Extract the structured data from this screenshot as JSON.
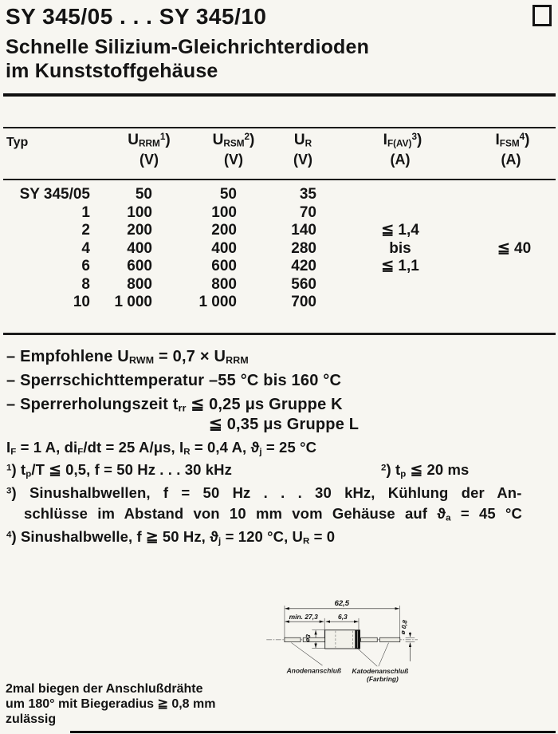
{
  "page": {
    "title": "SY 345/05 . . . SY 345/10",
    "subtitle_line1": "Schnelle Silizium-Gleichrichterdioden",
    "subtitle_line2": "im Kunststoffgehäuse"
  },
  "table": {
    "header": {
      "typ": "Typ",
      "col1": "U~RRM~^1^)",
      "col1_unit": "(V)",
      "col2": "U~RSM~^2^)",
      "col2_unit": "(V)",
      "col3": "U~R~",
      "col3_unit": "(V)",
      "col4": "I~F(AV)~^3^)",
      "col4_unit": "(A)",
      "col5": "I~FSM~^4^)",
      "col5_unit": "(A)"
    },
    "rows": [
      [
        "SY 345/05",
        "50",
        "50",
        "35"
      ],
      [
        "1",
        "100",
        "100",
        "70"
      ],
      [
        "2",
        "200",
        "200",
        "140"
      ],
      [
        "4",
        "400",
        "400",
        "280"
      ],
      [
        "6",
        "600",
        "600",
        "420"
      ],
      [
        "8",
        "800",
        "800",
        "560"
      ],
      [
        "10",
        "1 000",
        "1 000",
        "700"
      ]
    ],
    "if_av": [
      "≦ 1,4",
      "bis",
      "≦ 1,1"
    ],
    "ifsm": "≦ 40"
  },
  "notes": {
    "n1": "– Empfohlene U~RWM~ = 0,7 × U~RRM~",
    "n2": "– Sperrschichttemperatur –55 °C bis 160 °C",
    "n3": "– Sperrerholungszeit t~rr~ ≦ 0,25 μs Gruppe K",
    "n3b": "≦ 0,35 μs Gruppe L"
  },
  "footnotes": {
    "f0": "I~F~ = 1 A, di~F~/dt = 25 A/μs, I~R~ = 0,4 A, ϑ~j~ = 25 °C",
    "f1": "^1^) t~p~/T ≦ 0,5, f = 50 Hz . . . 30 kHz",
    "f2": "^2^) t~p~ ≦ 20 ms",
    "f3a": "^3^) Sinushalbwellen, f = 50 Hz . . . 30 kHz, Kühlung der An-",
    "f3b": "schlüsse im Abstand von 10 mm vom Gehäuse auf ϑ~a~ = 45 °C",
    "f4": "^4^) Sinushalbwelle, f ≧ 50 Hz, ϑ~j~ = 120 °C, U~R~ = 0"
  },
  "drawing": {
    "dim_total": "62,5",
    "dim_lead": "min. 27,3",
    "dim_body": "6,3",
    "dim_body_dia": "ø3",
    "dim_wire_dia": "ø 0,8",
    "label_anode": "Anodenanschluß",
    "label_cathode": "Katodenanschluß",
    "label_cathode2": "(Farbring)"
  },
  "bend_note": {
    "line1": "2mal biegen der Anschlußdrähte",
    "line2": "um 180° mit Biegeradius ≧ 0,8 mm",
    "line3": "zulässig"
  }
}
